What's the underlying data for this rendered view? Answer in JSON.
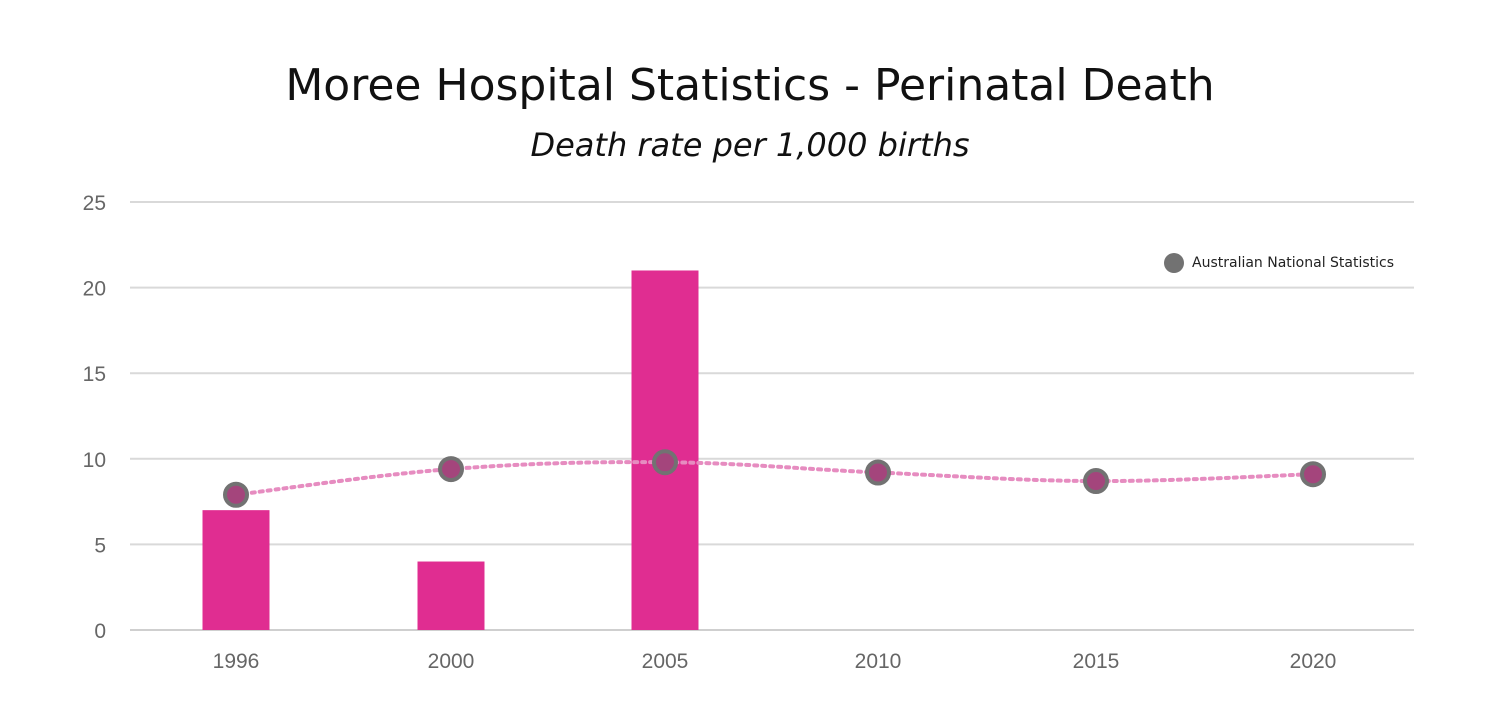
{
  "chart_data": {
    "type": "bar",
    "title": "Moree Hospital Statistics - Perinatal Death",
    "subtitle": "Death rate per 1,000 births",
    "categories": [
      "1996",
      "2000",
      "2005",
      "2010",
      "2015",
      "2020"
    ],
    "series": [
      {
        "type": "bar",
        "values": [
          7,
          4,
          21,
          null,
          null,
          null
        ]
      },
      {
        "type": "line",
        "name": "Australian National Statistics",
        "values": [
          7.9,
          9.4,
          9.8,
          9.2,
          8.7,
          9.1
        ]
      }
    ],
    "xlabel": "",
    "ylabel": "",
    "ylim": [
      0,
      25
    ],
    "yticks": [
      "0",
      "5",
      "10",
      "15",
      "20",
      "25"
    ],
    "grid": true,
    "legend_position": "top-right",
    "colors": {
      "bar": "#e02d91",
      "line": "#e68cc0",
      "marker": "#727272"
    }
  }
}
